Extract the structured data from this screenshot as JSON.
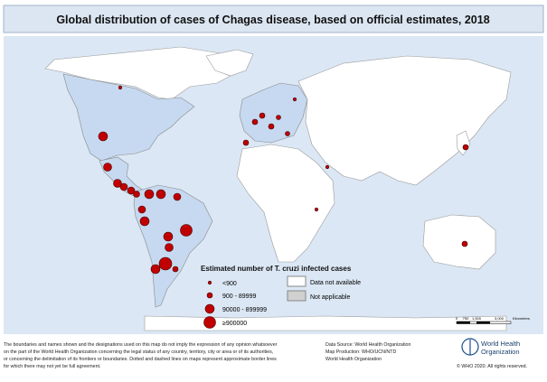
{
  "header": {
    "title": "Global distribution of cases of Chagas disease, based on official estimates, 2018"
  },
  "legend": {
    "title": "Estimated number of T. cruzi infected cases",
    "classes": [
      "<900",
      "900 - 89999",
      "90000 - 899999",
      "≥900000"
    ],
    "areas": [
      "Data not available",
      "Not applicable"
    ]
  },
  "scale_bar": {
    "labels": [
      "0",
      "750",
      "1,500",
      "3,000"
    ],
    "unit": "Kilometers"
  },
  "disclaimer": [
    "The boundaries and names shown and the designations used on this map do not imply the expression of any opinion whatsoever",
    "on the part of the World Health Organization concerning the legal status of any country, territory, city or area or of its authorities,",
    "or concerning the delimitation of its frontiers or boundaries. Dotted and dashed lines on maps represent approximate border lines",
    "for which there may not yet be full agreement."
  ],
  "credits": [
    "Data Source: World Health Organization",
    "Map Production: WHO/UCN/NTD",
    "World Health Organization"
  ],
  "logo": [
    "World Health",
    "Organization"
  ],
  "copyright": "© WHO 2020. All rights reserved."
}
